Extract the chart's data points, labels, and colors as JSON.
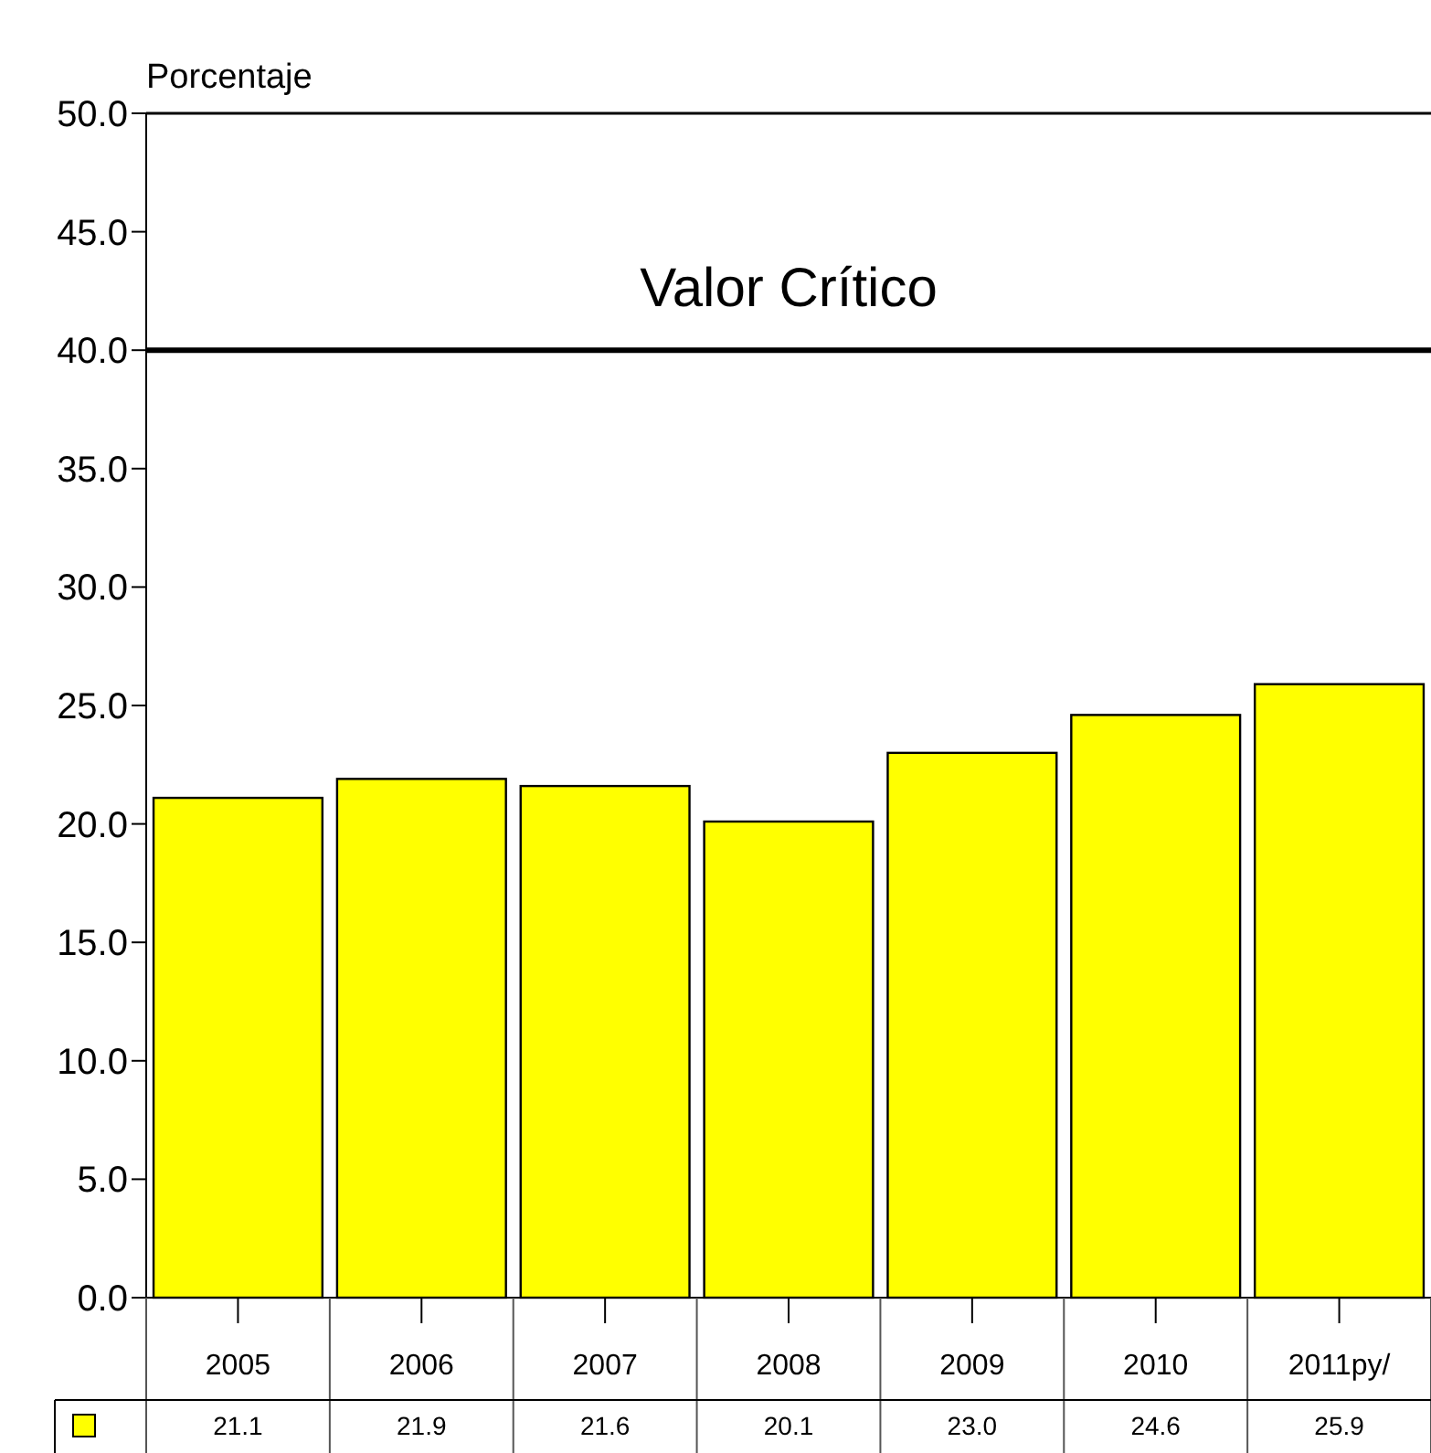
{
  "chart_data": {
    "type": "bar",
    "ylabel": "Porcentaje",
    "categories": [
      "2005",
      "2006",
      "2007",
      "2008",
      "2009",
      "2010",
      "2011py/"
    ],
    "values": [
      21.1,
      21.9,
      21.6,
      20.1,
      23.0,
      24.6,
      25.9
    ],
    "color": "#ffff00",
    "value_labels": [
      "21.1",
      "21.9",
      "21.6",
      "20.1",
      "23.0",
      "24.6",
      "25.9"
    ],
    "grid": false,
    "ylim": [
      0,
      50
    ],
    "yticks": [
      {
        "value": 0,
        "label": "0.0"
      },
      {
        "value": 5,
        "label": "5.0"
      },
      {
        "value": 10,
        "label": "10.0"
      },
      {
        "value": 15,
        "label": "15.0"
      },
      {
        "value": 20,
        "label": "20.0"
      },
      {
        "value": 25,
        "label": "25.0"
      },
      {
        "value": 30,
        "label": "30.0"
      },
      {
        "value": 35,
        "label": "35.0"
      },
      {
        "value": 40,
        "label": "40.0"
      },
      {
        "value": 45,
        "label": "45.0"
      },
      {
        "value": 50,
        "label": "50.0"
      }
    ],
    "ref_lines": [
      {
        "axis": "y",
        "value": 40,
        "label": "Valor Crítico",
        "color": "#000000"
      }
    ]
  }
}
